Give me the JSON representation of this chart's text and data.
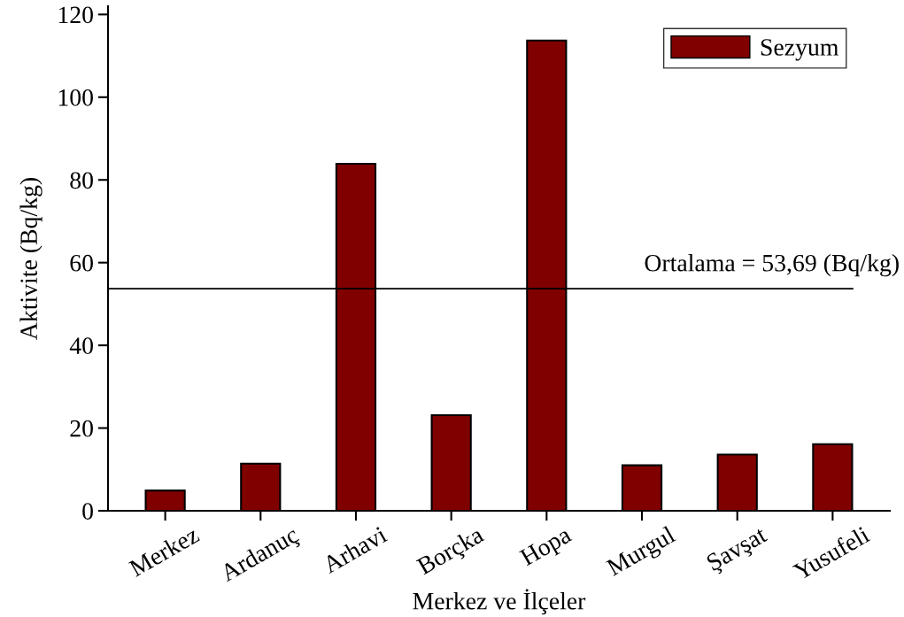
{
  "chart_data": {
    "type": "bar",
    "xlabel": "Merkez ve İlçeler",
    "ylabel": "Aktivite (Bq/kg)",
    "categories": [
      "Merkez",
      "Ardanuç",
      "Arhavi",
      "Borçka",
      "Hopa",
      "Murgul",
      "Şavşat",
      "Yusufeli"
    ],
    "series": [
      {
        "name": "Sezyum",
        "color": "#800000",
        "values": [
          4.9,
          11.4,
          83.9,
          23.1,
          113.7,
          11.0,
          13.6,
          16.1
        ]
      }
    ],
    "ylim": [
      0,
      122
    ],
    "yticks": [
      0,
      20,
      40,
      60,
      80,
      100,
      120
    ],
    "ref_lines": [
      {
        "axis": "y",
        "value": 53.69,
        "label": "Ortalama = 53,69 (Bq/kg)"
      }
    ],
    "legend": "top right",
    "grid": false
  }
}
